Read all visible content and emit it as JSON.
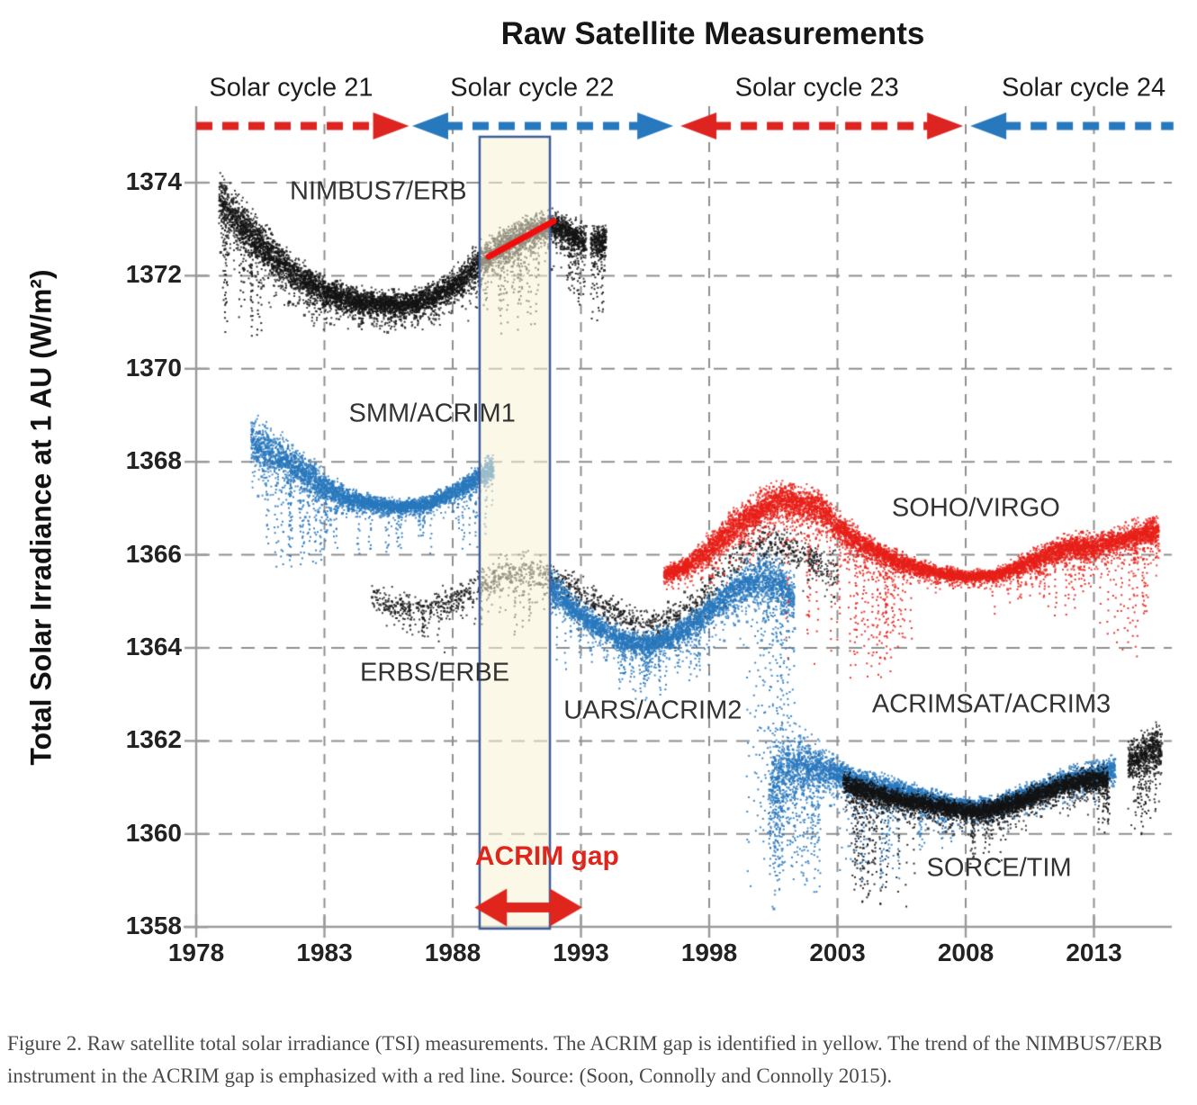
{
  "figure": {
    "caption": "Figure 2. Raw satellite total solar irradiance (TSI) measurements. The ACRIM gap is identified in yellow. The trend of the NIMBUS7/ERB instrument in the ACRIM gap is emphasized with a red line. Source: (Soon, Connolly and Connolly 2015)."
  },
  "chart_data": {
    "type": "scatter",
    "title": "Raw Satellite Measurements",
    "xlabel": "",
    "ylabel": "Total Solar Irradiance at 1 AU (W/m²)",
    "xlim": [
      1978,
      2016.2
    ],
    "ylim": [
      1357.8,
      1375.2
    ],
    "xticks": [
      1978,
      1983,
      1988,
      1993,
      1998,
      2003,
      2008,
      2013
    ],
    "yticks": [
      1374,
      1372,
      1370,
      1368,
      1366,
      1364,
      1362,
      1360,
      1358
    ],
    "grid": "dashed-gray",
    "colors": {
      "red": "#e0251c",
      "blue": "#2878bd",
      "black": "#141414"
    },
    "solar_cycles": [
      {
        "label": "Solar cycle 21",
        "color": "#dd2420",
        "start": 1978.0,
        "end": 1986.3,
        "head_left": false,
        "head_right": true,
        "label_center_year": 1981.7
      },
      {
        "label": "Solar cycle 22",
        "color": "#2878bd",
        "start": 1986.42,
        "end": 1996.6,
        "head_left": true,
        "head_right": true,
        "label_center_year": 1991.1
      },
      {
        "label": "Solar cycle 23",
        "color": "#dd2420",
        "start": 1996.88,
        "end": 2007.9,
        "head_left": true,
        "head_right": true,
        "label_center_year": 2002.2
      },
      {
        "label": "Solar cycle 24",
        "color": "#2878bd",
        "start": 2008.18,
        "end": 2016.1,
        "head_left": true,
        "head_right": false,
        "label_center_year": 2012.6
      }
    ],
    "acrim_gap": {
      "label": "ACRIM gap",
      "label_year": 1991.68,
      "label_value": 1359.52,
      "start_year": 1989.05,
      "end_year": 1991.79,
      "box_fill": "#f8f3d6",
      "box_border": "#3d5d99",
      "arrow_color": "#e0251c",
      "arrow_start_year": 1988.85,
      "arrow_end_year": 1993.05,
      "arrow_value": 1358.42,
      "trend_line": {
        "color": "#f20d0d",
        "year1": 1989.4,
        "value1": 1372.41,
        "year2": 1991.93,
        "value2": 1373.17
      }
    },
    "series": [
      {
        "name": "NIMBUS7/ERB",
        "color": "#141414",
        "label": "NIMBUS7/ERB",
        "label_year": 1985.1,
        "label_value": 1373.81,
        "density": 420,
        "segments": [
          [
            [
              1978.85,
              1373.6,
              0.55
            ],
            [
              1979.3,
              1373.35,
              0.5
            ],
            [
              1980,
              1372.95,
              0.45
            ],
            [
              1981,
              1372.4,
              0.4
            ],
            [
              1982,
              1371.95,
              0.35
            ],
            [
              1983,
              1371.65,
              0.3
            ],
            [
              1984,
              1371.5,
              0.26
            ],
            [
              1985,
              1371.42,
              0.24
            ],
            [
              1986,
              1371.4,
              0.24
            ],
            [
              1987,
              1371.5,
              0.26
            ],
            [
              1988,
              1371.8,
              0.3
            ],
            [
              1989,
              1372.3,
              0.36
            ],
            [
              1990,
              1372.65,
              0.36
            ],
            [
              1991,
              1372.95,
              0.34
            ],
            [
              1991.8,
              1373.1,
              0.32
            ],
            [
              1992.4,
              1372.95,
              0.3
            ],
            [
              1993.15,
              1372.75,
              0.32
            ]
          ],
          [
            [
              1993.35,
              1372.75,
              0.3
            ],
            [
              1993.95,
              1372.8,
              0.32
            ]
          ]
        ],
        "spikes": [
          {
            "from": 1979.0,
            "to": 1980.5,
            "count": 12,
            "min": 1370.7
          },
          {
            "from": 1983.5,
            "to": 1987.5,
            "count": 10,
            "min": 1370.8
          },
          {
            "from": 1989.2,
            "to": 1991.6,
            "count": 14,
            "min": 1370.8
          },
          {
            "from": 1992.3,
            "to": 1993.2,
            "count": 7,
            "min": 1371.1
          },
          {
            "from": 1993.4,
            "to": 1993.8,
            "count": 5,
            "min": 1371.0
          }
        ]
      },
      {
        "name": "SMM/ACRIM1",
        "color": "#2878bd",
        "label": "SMM/ACRIM1",
        "label_year": 1987.2,
        "label_value": 1369.03,
        "density": 380,
        "segments": [
          [
            [
              1980.1,
              1368.45,
              0.5
            ],
            [
              1980.6,
              1368.3,
              0.46
            ],
            [
              1981.3,
              1368.1,
              0.42
            ],
            [
              1982,
              1367.85,
              0.4
            ],
            [
              1983,
              1367.45,
              0.3
            ],
            [
              1984,
              1367.2,
              0.18
            ],
            [
              1985,
              1367.1,
              0.15
            ],
            [
              1986,
              1367.05,
              0.14
            ],
            [
              1987,
              1367.12,
              0.15
            ],
            [
              1988,
              1367.35,
              0.2
            ],
            [
              1989,
              1367.7,
              0.22
            ],
            [
              1989.55,
              1367.9,
              0.26
            ]
          ]
        ],
        "spikes": [
          {
            "from": 1980.2,
            "to": 1983.5,
            "count": 26,
            "min": 1365.7
          },
          {
            "from": 1984,
            "to": 1989.4,
            "count": 16,
            "min": 1366.0
          }
        ]
      },
      {
        "name": "ERBS/ERBE",
        "color": "#141414",
        "label": "ERBS/ERBE",
        "label_year": 1987.3,
        "label_value": 1363.46,
        "density": 85,
        "segments": [
          [
            [
              1984.8,
              1365.1,
              0.32
            ],
            [
              1986,
              1364.95,
              0.3
            ],
            [
              1987,
              1364.85,
              0.3
            ],
            [
              1988,
              1365.0,
              0.32
            ],
            [
              1989,
              1365.3,
              0.32
            ],
            [
              1990,
              1365.6,
              0.36
            ],
            [
              1991,
              1365.65,
              0.36
            ],
            [
              1992,
              1365.45,
              0.36
            ],
            [
              1993,
              1365.15,
              0.32
            ],
            [
              1994,
              1364.85,
              0.3
            ],
            [
              1995,
              1364.6,
              0.27
            ],
            [
              1996,
              1364.55,
              0.27
            ],
            [
              1997,
              1364.8,
              0.32
            ],
            [
              1998,
              1365.25,
              0.36
            ],
            [
              1999,
              1365.9,
              0.42
            ],
            [
              2000,
              1366.3,
              0.45
            ],
            [
              2001,
              1366.2,
              0.45
            ],
            [
              2002,
              1365.9,
              0.4
            ],
            [
              2003,
              1365.6,
              0.35
            ]
          ]
        ],
        "spikes": [
          {
            "from": 1986,
            "to": 1992,
            "count": 8,
            "min": 1364.1
          }
        ]
      },
      {
        "name": "UARS/ACRIM2",
        "color": "#2878bd",
        "label": "UARS/ACRIM2",
        "label_year": 1995.8,
        "label_value": 1362.65,
        "density": 360,
        "segments": [
          [
            [
              1991.8,
              1365.35,
              0.32
            ],
            [
              1992.5,
              1364.95,
              0.28
            ],
            [
              1993.5,
              1364.5,
              0.25
            ],
            [
              1994.5,
              1364.2,
              0.22
            ],
            [
              1995.5,
              1364.1,
              0.22
            ],
            [
              1996.5,
              1364.25,
              0.25
            ],
            [
              1997.5,
              1364.6,
              0.28
            ],
            [
              1998.5,
              1365.05,
              0.32
            ],
            [
              1999.2,
              1365.35,
              0.38
            ],
            [
              2000,
              1365.5,
              0.48
            ],
            [
              2000.7,
              1365.35,
              0.5
            ],
            [
              2001.3,
              1365.1,
              0.45
            ]
          ]
        ],
        "spikes": [
          {
            "from": 1992,
            "to": 1999,
            "count": 22,
            "min": 1363.2
          },
          {
            "from": 1994,
            "to": 1996.5,
            "count": 9,
            "min": 1362.9
          },
          {
            "from": 1999.3,
            "to": 2001.3,
            "count": 26,
            "min": 1358.7
          }
        ]
      },
      {
        "name": "SOHO/VIRGO",
        "color": "#e62019",
        "label": "SOHO/VIRGO",
        "label_year": 2008.4,
        "label_value": 1367.0,
        "density": 420,
        "segments": [
          [
            [
              1996.2,
              1365.6,
              0.14
            ],
            [
              1997,
              1365.75,
              0.18
            ],
            [
              1998,
              1366.15,
              0.3
            ],
            [
              1999,
              1366.65,
              0.36
            ],
            [
              2000,
              1367.0,
              0.36
            ],
            [
              2000.8,
              1367.2,
              0.36
            ],
            [
              2001.6,
              1367.1,
              0.36
            ],
            [
              2002.4,
              1367.0,
              0.36
            ],
            [
              2003,
              1366.6,
              0.3
            ],
            [
              2004,
              1366.25,
              0.25
            ],
            [
              2005,
              1365.95,
              0.2
            ],
            [
              2006,
              1365.75,
              0.16
            ],
            [
              2007,
              1365.62,
              0.13
            ],
            [
              2008,
              1365.55,
              0.12
            ],
            [
              2009,
              1365.57,
              0.12
            ],
            [
              2010,
              1365.75,
              0.18
            ],
            [
              2011,
              1366.0,
              0.22
            ],
            [
              2012,
              1366.2,
              0.25
            ],
            [
              2013,
              1366.2,
              0.25
            ],
            [
              2014,
              1366.35,
              0.26
            ],
            [
              2015.5,
              1366.55,
              0.3
            ]
          ]
        ],
        "spikes": [
          {
            "from": 2001,
            "to": 2006,
            "count": 38,
            "min": 1363.4
          },
          {
            "from": 2009,
            "to": 2013,
            "count": 16,
            "min": 1364.7
          },
          {
            "from": 2013.2,
            "to": 2015.3,
            "count": 14,
            "min": 1363.8
          }
        ]
      },
      {
        "name": "ACRIMSAT/ACRIM3",
        "color": "#2878bd",
        "label": "ACRIMSAT/ACRIM3",
        "label_year": 2009.0,
        "label_value": 1362.78,
        "density": 380,
        "segments": [
          [
            [
              2000.3,
              1361.0,
              1.05
            ],
            [
              2000.9,
              1361.3,
              0.9
            ],
            [
              2001.6,
              1361.5,
              0.6
            ],
            [
              2002.3,
              1361.45,
              0.42
            ],
            [
              2003,
              1361.3,
              0.3
            ],
            [
              2004,
              1361.1,
              0.25
            ],
            [
              2005,
              1361.0,
              0.22
            ],
            [
              2006,
              1360.85,
              0.2
            ],
            [
              2007,
              1360.7,
              0.18
            ],
            [
              2008,
              1360.6,
              0.18
            ],
            [
              2009,
              1360.6,
              0.18
            ],
            [
              2010,
              1360.8,
              0.2
            ],
            [
              2011,
              1361.0,
              0.2
            ],
            [
              2012,
              1361.2,
              0.22
            ],
            [
              2013,
              1361.3,
              0.22
            ],
            [
              2013.8,
              1361.4,
              0.25
            ]
          ]
        ],
        "spikes": [
          {
            "from": 2000.3,
            "to": 2002.3,
            "count": 30,
            "min": 1358.7
          },
          {
            "from": 2003,
            "to": 2005.5,
            "count": 16,
            "min": 1358.9
          },
          {
            "from": 2006,
            "to": 2008,
            "count": 8,
            "min": 1359.7
          }
        ]
      },
      {
        "name": "SORCE/TIM",
        "color": "#141414",
        "label": "SORCE/TIM",
        "label_year": 2009.3,
        "label_value": 1359.26,
        "density": 420,
        "segments": [
          [
            [
              2003.2,
              1361.1,
              0.26
            ],
            [
              2004,
              1360.95,
              0.22
            ],
            [
              2005,
              1360.8,
              0.2
            ],
            [
              2006,
              1360.7,
              0.18
            ],
            [
              2007,
              1360.6,
              0.18
            ],
            [
              2008,
              1360.5,
              0.18
            ],
            [
              2009,
              1360.55,
              0.18
            ],
            [
              2010,
              1360.7,
              0.2
            ],
            [
              2011,
              1360.9,
              0.2
            ],
            [
              2012,
              1361.1,
              0.22
            ],
            [
              2013,
              1361.2,
              0.22
            ],
            [
              2013.5,
              1361.2,
              0.24
            ]
          ],
          [
            [
              2014.3,
              1361.5,
              0.42
            ],
            [
              2014.9,
              1361.75,
              0.42
            ],
            [
              2015.6,
              1361.9,
              0.42
            ]
          ]
        ],
        "spikes": [
          {
            "from": 2003.3,
            "to": 2006,
            "count": 22,
            "min": 1358.4
          },
          {
            "from": 2008,
            "to": 2009.5,
            "count": 8,
            "min": 1359.4
          },
          {
            "from": 2013.1,
            "to": 2013.6,
            "count": 6,
            "min": 1360.0
          },
          {
            "from": 2014.5,
            "to": 2015.5,
            "count": 9,
            "min": 1359.9
          }
        ]
      }
    ]
  }
}
